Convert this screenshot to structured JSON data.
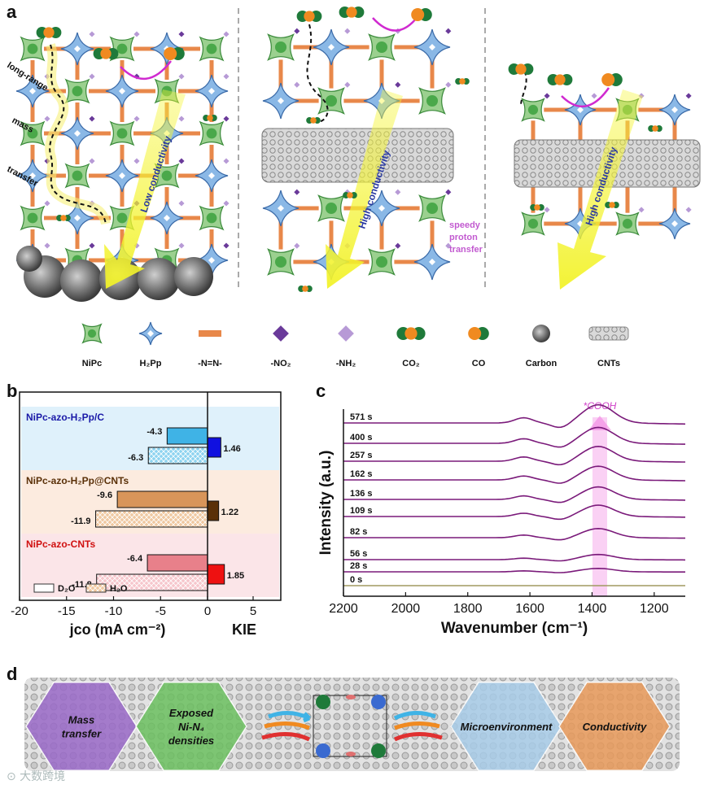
{
  "panels": {
    "a": "a",
    "b": "b",
    "c": "c",
    "d": "d"
  },
  "colors": {
    "nipc": "#9bd08f",
    "h2pp": "#8ab8e6",
    "azo": "#e8884a",
    "no2": "#6a3a9a",
    "nh2": "#b79ad6",
    "co2_dark": "#1f7a3a",
    "co_orange": "#f08a20",
    "arrow_yellow": "#f2f22a",
    "proton": "#c25ad0",
    "d2o_h2pp_c": "#3fb3e6",
    "h2o_h2pp_c": "#8dd3f0",
    "kie_h2pp_c": "#1010e0",
    "d2o_h2pp_cnt": "#d8955a",
    "h2o_h2pp_cnt": "#f0c8a0",
    "kie_h2pp_cnt": "#5a3008",
    "d2o_cnts": "#e8808a",
    "h2o_cnts": "#f6c6cc",
    "kie_cnts": "#ee1111",
    "trace_purple": "#7a1a7a",
    "trace_olive": "#a09a60",
    "highlight_pink": "#f07ce0",
    "hex_purple": "#9a6ac8",
    "hex_green": "#6cc060",
    "hex_blue": "#a8cce8",
    "hex_orange": "#e89a5a"
  },
  "panel_a": {
    "left_labels": [
      "long-range",
      "mass",
      "transfer"
    ],
    "left_conductivity": "Low conductivity",
    "mid_conductivity": "High conductivity",
    "right_conductivity": "High conductivity",
    "proton_label_lines": [
      "speedy",
      "proton",
      "transfer"
    ]
  },
  "legend": [
    {
      "icon": "nipc-icon",
      "label": "NiPc"
    },
    {
      "icon": "h2pp-icon",
      "label": "H₂Pp"
    },
    {
      "icon": "azo-icon",
      "label": "-N=N-"
    },
    {
      "icon": "no2-icon",
      "label": "-NO₂"
    },
    {
      "icon": "nh2-icon",
      "label": "-NH₂"
    },
    {
      "icon": "co2-icon",
      "label": "CO₂"
    },
    {
      "icon": "co-icon",
      "label": "CO"
    },
    {
      "icon": "carbon-icon",
      "label": "Carbon"
    },
    {
      "icon": "cnts-icon",
      "label": "CNTs"
    }
  ],
  "chart_data": [
    {
      "type": "bar",
      "orientation": "horizontal",
      "groups": [
        {
          "name": "NiPc-azo-H₂Pp/C",
          "d2o": -4.3,
          "h2o": -6.3,
          "kie": 1.46
        },
        {
          "name": "NiPc-azo-H₂Pp@CNTs",
          "d2o": -9.6,
          "h2o": -11.9,
          "kie": 1.22
        },
        {
          "name": "NiPc-azo-CNTs",
          "d2o": -6.4,
          "h2o": -11.8,
          "kie": 1.85
        }
      ],
      "xlim_left": [
        -20,
        0
      ],
      "xlim_right": [
        0,
        8
      ],
      "ticks_left": [
        "-20",
        "-15",
        "-10",
        "-5",
        "0"
      ],
      "ticks_right": [
        "5"
      ],
      "xlabel_left": "jco (mA cm⁻²)",
      "xlabel_right": "KIE",
      "legend": [
        "D₂O",
        "H₂O"
      ]
    },
    {
      "type": "line",
      "title": "*COOH",
      "xlabel": "Wavenumber (cm⁻¹)",
      "ylabel": "Intensity (a.u.)",
      "xlim": [
        2200,
        1100
      ],
      "xticks": [
        "2200",
        "2000",
        "1800",
        "1600",
        "1400",
        "1200"
      ],
      "highlight_x": 1375,
      "series": [
        {
          "name": "0 s",
          "peak": 0.0
        },
        {
          "name": "28 s",
          "peak": 0.3
        },
        {
          "name": "56 s",
          "peak": 0.45
        },
        {
          "name": "82 s",
          "peak": 0.8
        },
        {
          "name": "109 s",
          "peak": 1.0
        },
        {
          "name": "136 s",
          "peak": 1.1
        },
        {
          "name": "162 s",
          "peak": 1.2
        },
        {
          "name": "257 s",
          "peak": 1.3
        },
        {
          "name": "400 s",
          "peak": 1.4
        },
        {
          "name": "571 s",
          "peak": 1.6
        }
      ]
    }
  ],
  "panel_d": {
    "hexagons": [
      {
        "label_lines": [
          "Mass",
          "transfer"
        ]
      },
      {
        "label_lines": [
          "Exposed",
          "Ni-N₄",
          "densities"
        ]
      },
      {
        "label_lines": [
          "Microenvironment"
        ]
      },
      {
        "label_lines": [
          "Conductivity"
        ]
      }
    ]
  },
  "watermark": "⊙ 大数跨境"
}
